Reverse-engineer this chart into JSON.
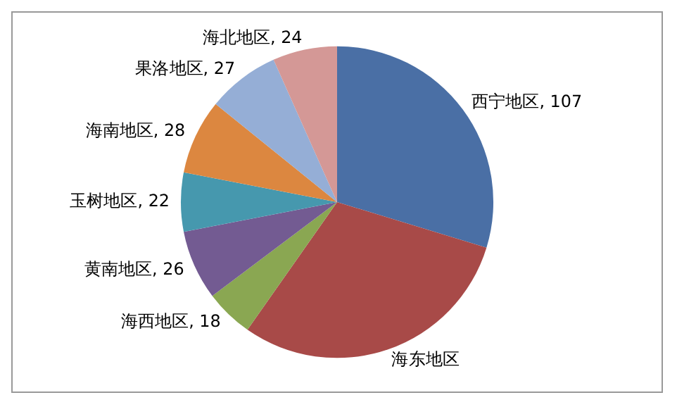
{
  "chart_data": {
    "type": "pie",
    "categories": [
      "西宁地区",
      "海东地区",
      "海西地区",
      "黄南地区",
      "玉树地区",
      "海南地区",
      "果洛地区",
      "海北地区"
    ],
    "values": [
      107,
      108,
      18,
      26,
      22,
      28,
      27,
      24
    ],
    "value_labels": [
      "107",
      null,
      "18",
      "26",
      "22",
      "28",
      "27",
      "24"
    ],
    "colors": [
      "#4a6fa5",
      "#a84a48",
      "#8aa752",
      "#735b92",
      "#4698ae",
      "#dc8740",
      "#95aed6",
      "#d49896"
    ],
    "legend": false
  }
}
